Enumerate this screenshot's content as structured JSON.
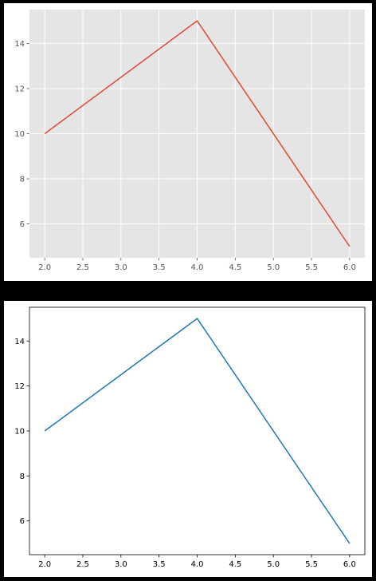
{
  "chart_data": [
    {
      "type": "line",
      "style": "ggplot",
      "x": [
        2.0,
        4.0,
        6.0
      ],
      "series": [
        {
          "values": [
            10,
            15,
            5
          ]
        }
      ],
      "xlim": [
        1.8,
        6.2
      ],
      "ylim": [
        4.5,
        15.5
      ],
      "xticks": [
        "2.0",
        "2.5",
        "3.0",
        "3.5",
        "4.0",
        "4.5",
        "5.0",
        "5.5",
        "6.0"
      ],
      "yticks": [
        "6",
        "8",
        "10",
        "12",
        "14"
      ],
      "grid": true,
      "colors": {
        "line": "#E24A33",
        "plot_bg": "#E5E5E5",
        "grid": "#FFFFFF",
        "tick_text": "#555555"
      }
    },
    {
      "type": "line",
      "style": "default",
      "x": [
        2.0,
        4.0,
        6.0
      ],
      "series": [
        {
          "values": [
            10,
            15,
            5
          ]
        }
      ],
      "xlim": [
        1.8,
        6.2
      ],
      "ylim": [
        4.5,
        15.5
      ],
      "xticks": [
        "2.0",
        "2.5",
        "3.0",
        "3.5",
        "4.0",
        "4.5",
        "5.0",
        "5.5",
        "6.0"
      ],
      "yticks": [
        "6",
        "8",
        "10",
        "12",
        "14"
      ],
      "grid": false,
      "colors": {
        "line": "#1F77B4",
        "plot_bg": "#FFFFFF",
        "axis": "#000000",
        "tick_text": "#000000"
      }
    }
  ]
}
